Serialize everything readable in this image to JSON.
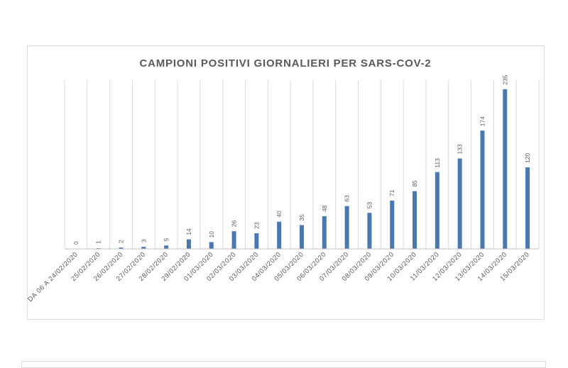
{
  "chart_data": {
    "type": "bar",
    "title": "CAMPIONI POSITIVI GIORNALIERI PER SARS-COV-2",
    "categories": [
      "DA 06 A 24/02/2020",
      "25/02/2020",
      "26/02/2020",
      "27/02/2020",
      "28/02/2020",
      "29/02/2020",
      "01/03/2020",
      "02/03/2020",
      "03/03/2020",
      "04/03/2020",
      "05/03/2020",
      "06/03/2020",
      "07/03/2020",
      "08/03/2020",
      "09/03/2020",
      "10/03/2020",
      "11/03/2020",
      "12/03/2020",
      "13/03/2020",
      "14/03/2020",
      "15/03/2020"
    ],
    "values": [
      0,
      1,
      2,
      3,
      5,
      14,
      10,
      26,
      23,
      40,
      35,
      48,
      63,
      53,
      71,
      85,
      113,
      133,
      174,
      235,
      120
    ],
    "ylim": [
      0,
      240
    ],
    "grid": "vertical",
    "legend": "none",
    "colors": {
      "bar": "#4a78b5",
      "grid": "#d9d9d9",
      "axis": "#bfbfbf",
      "title": "#595959",
      "label": "#595959"
    }
  }
}
